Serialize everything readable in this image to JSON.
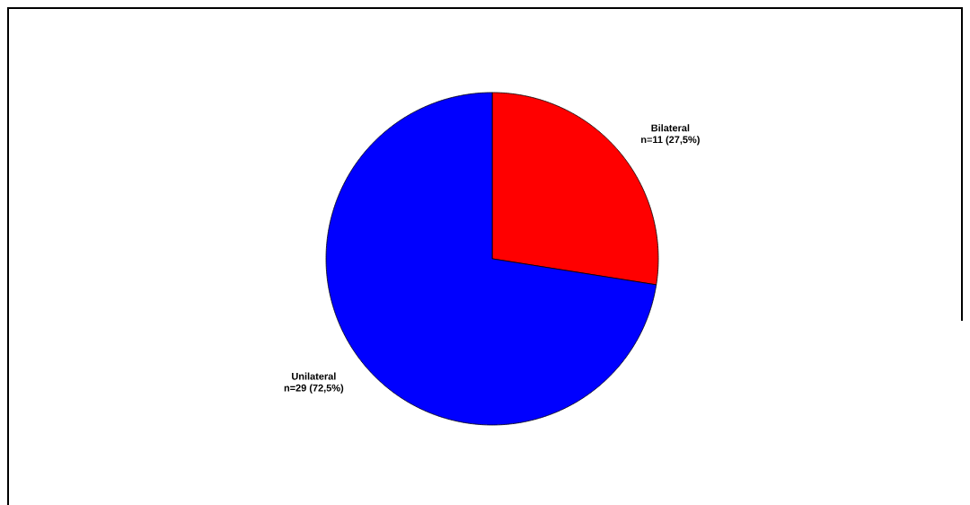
{
  "chart_data": {
    "type": "pie",
    "categories": [
      "Bilateral",
      "Unilateral"
    ],
    "values": [
      11,
      29
    ],
    "value_labels": [
      "n=11 (27,5%)",
      "n=29 (72,5%)"
    ],
    "colors": [
      "#ff0000",
      "#0000ff"
    ],
    "legend": false
  }
}
